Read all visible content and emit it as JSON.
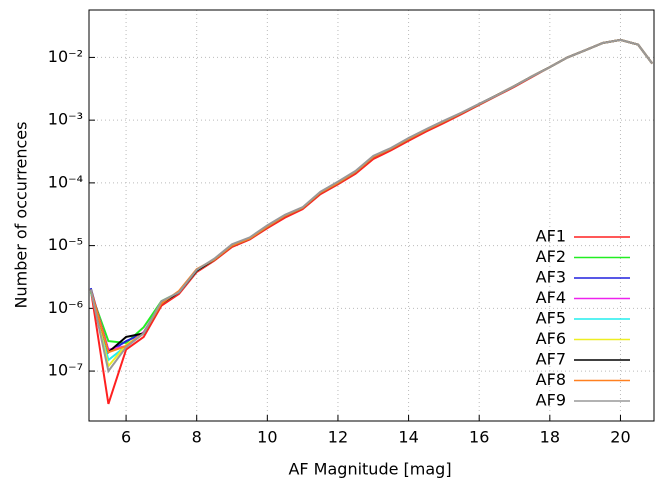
{
  "chart_data": {
    "type": "line",
    "xlabel": "AF Magnitude [mag]",
    "ylabel": "Number of occurrences",
    "x": [
      5,
      5.5,
      6,
      6.5,
      7,
      7.5,
      8,
      8.5,
      9,
      9.5,
      10,
      10.5,
      11,
      11.5,
      12,
      12.5,
      13,
      13.5,
      14,
      14.5,
      15,
      15.5,
      16,
      16.5,
      17,
      17.5,
      18,
      18.5,
      19,
      19.5,
      20,
      20.5,
      20.9
    ],
    "xlim": [
      4.95,
      20.95
    ],
    "xticks": [
      6,
      8,
      10,
      12,
      14,
      16,
      18,
      20
    ],
    "ylim": [
      1.6e-08,
      0.057
    ],
    "log_y": true,
    "grid": true,
    "legend": "lower right",
    "yticks": [
      {
        "value": 1e-07,
        "label": "10⁻⁷"
      },
      {
        "value": 1e-06,
        "label": "10⁻⁶"
      },
      {
        "value": 1e-05,
        "label": "10⁻⁵"
      },
      {
        "value": 0.0001,
        "label": "10⁻⁴"
      },
      {
        "value": 0.001,
        "label": "10⁻³"
      },
      {
        "value": 0.01,
        "label": "10⁻²"
      }
    ],
    "series": [
      {
        "name": "AF1",
        "color": "#ff2020",
        "values": [
          2e-06,
          3e-08,
          2.2e-07,
          3.5e-07,
          1.1e-06,
          1.7e-06,
          3.8e-06,
          5.8e-06,
          9.5e-06,
          1.25e-05,
          1.9e-05,
          2.8e-05,
          3.8e-05,
          6.6e-05,
          9.5e-05,
          0.00014,
          0.00024,
          0.00033,
          0.00047,
          0.00066,
          0.0009,
          0.00125,
          0.00175,
          0.00245,
          0.0034,
          0.0049,
          0.007,
          0.01,
          0.013,
          0.017,
          0.019,
          0.016,
          0.008
        ]
      },
      {
        "name": "AF2",
        "color": "#22ee22",
        "values": [
          1.8e-06,
          3e-07,
          2.8e-07,
          5e-07,
          1.3e-06,
          1.8e-06,
          4e-06,
          6e-06,
          1e-05,
          1.3e-05,
          2e-05,
          3e-05,
          4e-05,
          7e-05,
          0.0001,
          0.00015,
          0.00026,
          0.00035,
          0.0005,
          0.0007,
          0.00095,
          0.0013,
          0.0018,
          0.0025,
          0.0035,
          0.005,
          0.007,
          0.01,
          0.013,
          0.017,
          0.019,
          0.016,
          0.008
        ]
      },
      {
        "name": "AF3",
        "color": "#2020dd",
        "values": [
          2.1e-06,
          2e-07,
          3e-07,
          4e-07,
          1.2e-06,
          1.8e-06,
          4e-06,
          6e-06,
          1e-05,
          1.3e-05,
          2e-05,
          3e-05,
          4e-05,
          7e-05,
          0.0001,
          0.00015,
          0.00026,
          0.00035,
          0.0005,
          0.0007,
          0.00095,
          0.0013,
          0.0018,
          0.0025,
          0.0035,
          0.005,
          0.007,
          0.01,
          0.013,
          0.017,
          0.019,
          0.016,
          0.008
        ]
      },
      {
        "name": "AF4",
        "color": "#ee22ee",
        "values": [
          2e-06,
          2.2e-07,
          2.5e-07,
          4.2e-07,
          1.2e-06,
          1.8e-06,
          4e-06,
          6e-06,
          1e-05,
          1.3e-05,
          2e-05,
          3e-05,
          4e-05,
          7e-05,
          0.0001,
          0.00015,
          0.00026,
          0.00035,
          0.0005,
          0.0007,
          0.00095,
          0.0013,
          0.0018,
          0.0025,
          0.0035,
          0.005,
          0.007,
          0.01,
          0.013,
          0.017,
          0.019,
          0.016,
          0.008
        ]
      },
      {
        "name": "AF5",
        "color": "#22eeee",
        "values": [
          2e-06,
          1.5e-07,
          2.5e-07,
          4e-07,
          1.2e-06,
          1.8e-06,
          4e-06,
          6e-06,
          1e-05,
          1.3e-05,
          2e-05,
          3e-05,
          4e-05,
          7e-05,
          0.0001,
          0.00015,
          0.00026,
          0.00035,
          0.0005,
          0.0007,
          0.00095,
          0.0013,
          0.0018,
          0.0025,
          0.0035,
          0.005,
          0.007,
          0.01,
          0.013,
          0.017,
          0.019,
          0.016,
          0.008
        ]
      },
      {
        "name": "AF6",
        "color": "#eeee22",
        "values": [
          2e-06,
          1.2e-07,
          2.6e-07,
          4e-07,
          1.2e-06,
          1.8e-06,
          4e-06,
          6e-06,
          1e-05,
          1.3e-05,
          2e-05,
          3e-05,
          4e-05,
          7e-05,
          0.0001,
          0.00015,
          0.00026,
          0.00035,
          0.0005,
          0.0007,
          0.00095,
          0.0013,
          0.0018,
          0.0025,
          0.0035,
          0.005,
          0.007,
          0.01,
          0.013,
          0.017,
          0.019,
          0.016,
          0.008
        ]
      },
      {
        "name": "AF7",
        "color": "#000000",
        "values": [
          2e-06,
          2e-07,
          3.5e-07,
          4e-07,
          1.2e-06,
          1.8e-06,
          4e-06,
          6e-06,
          1e-05,
          1.3e-05,
          2e-05,
          3e-05,
          4e-05,
          7e-05,
          0.0001,
          0.00015,
          0.00026,
          0.00035,
          0.0005,
          0.0007,
          0.00095,
          0.0013,
          0.0018,
          0.0025,
          0.0035,
          0.005,
          0.007,
          0.01,
          0.013,
          0.017,
          0.019,
          0.016,
          0.008
        ]
      },
      {
        "name": "AF8",
        "color": "#ff8020",
        "values": [
          2e-06,
          2e-07,
          2.5e-07,
          4e-07,
          1.2e-06,
          1.9e-06,
          4.2e-06,
          6e-06,
          1e-05,
          1.3e-05,
          2e-05,
          3e-05,
          4e-05,
          7e-05,
          0.0001,
          0.00015,
          0.00026,
          0.00035,
          0.0005,
          0.0007,
          0.00095,
          0.0013,
          0.0018,
          0.0025,
          0.0035,
          0.005,
          0.007,
          0.01,
          0.013,
          0.017,
          0.019,
          0.016,
          0.008
        ]
      },
      {
        "name": "AF9",
        "color": "#999999",
        "values": [
          2e-06,
          1e-07,
          2.4e-07,
          4e-07,
          1.3e-06,
          1.8e-06,
          4.1e-06,
          6.2e-06,
          1.05e-05,
          1.35e-05,
          2.1e-05,
          3.1e-05,
          4.1e-05,
          7.2e-05,
          0.000105,
          0.000155,
          0.00027,
          0.00036,
          0.00052,
          0.00072,
          0.00098,
          0.00132,
          0.00182,
          0.0025,
          0.0035,
          0.005,
          0.007,
          0.01,
          0.013,
          0.017,
          0.019,
          0.016,
          0.008
        ]
      }
    ]
  }
}
